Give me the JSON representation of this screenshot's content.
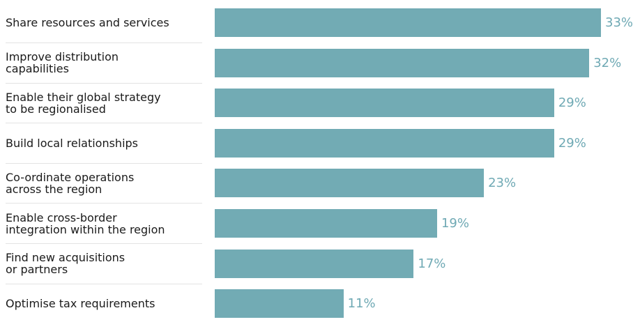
{
  "chart_data": {
    "type": "bar",
    "orientation": "horizontal",
    "color": "#72abb4",
    "categories": [
      "Share resources and services",
      "Improve distribution\ncapabilities",
      "Enable their global strategy\nto be regionalised",
      "Build local relationships",
      "Co-ordinate operations\nacross the region",
      "Enable cross-border\nintegration within the region",
      "Find new acquisitions\nor partners",
      "Optimise tax requirements"
    ],
    "values": [
      33,
      32,
      29,
      29,
      23,
      19,
      17,
      11
    ],
    "value_labels": [
      "33%",
      "32%",
      "29%",
      "29%",
      "23%",
      "19%",
      "17%",
      "11%"
    ]
  }
}
